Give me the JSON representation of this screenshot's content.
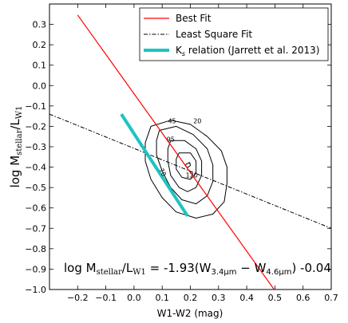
{
  "chart_data": {
    "type": "line",
    "xlabel": "W1-W2 (mag)",
    "ylabel_main": "log M",
    "ylabel_sub1": "stellar",
    "ylabel_mid": "/L",
    "ylabel_sub2": "W1",
    "xlim": [
      -0.3,
      0.7
    ],
    "ylim": [
      -1.0,
      0.4
    ],
    "xticks": [
      -0.2,
      -0.1,
      0.0,
      0.1,
      0.2,
      0.3,
      0.4,
      0.5,
      0.6,
      0.7
    ],
    "xtick_labels": [
      "−0.2",
      "−0.1",
      "0.0",
      "0.1",
      "0.2",
      "0.3",
      "0.4",
      "0.5",
      "0.6",
      "0.7"
    ],
    "yticks": [
      -1.0,
      -0.9,
      -0.8,
      -0.7,
      -0.6,
      -0.5,
      -0.4,
      -0.3,
      -0.2,
      -0.1,
      0.0,
      0.1,
      0.2,
      0.3
    ],
    "ytick_labels": [
      "−1.0",
      "−0.9",
      "−0.8",
      "−0.7",
      "−0.6",
      "−0.5",
      "−0.4",
      "−0.3",
      "−0.2",
      "−0.1",
      "0.0",
      "0.1",
      "0.2",
      "0.3"
    ],
    "series": [
      {
        "name": "Best Fit",
        "color": "#ff0000",
        "style": "solid",
        "x": [
          -0.2,
          0.5
        ],
        "y": [
          0.346,
          -1.005
        ]
      },
      {
        "name": "Least Square Fit",
        "color": "#000000",
        "style": "dashdot",
        "x": [
          -0.3,
          0.7
        ],
        "y": [
          -0.14,
          -0.7
        ]
      },
      {
        "name": "K",
        "name_sub": "s",
        "name_rest": " relation (Jarrett et al. 2013)",
        "color": "#1ec3c3",
        "style": "thick",
        "x": [
          -0.045,
          0.19
        ],
        "y": [
          -0.14,
          -0.64
        ]
      }
    ],
    "contours": [
      {
        "label": "20",
        "label_pos": [
          0.225,
          -0.185
        ],
        "points": [
          [
            0.06,
            -0.2
          ],
          [
            0.13,
            -0.17
          ],
          [
            0.2,
            -0.19
          ],
          [
            0.26,
            -0.25
          ],
          [
            0.31,
            -0.32
          ],
          [
            0.33,
            -0.4
          ],
          [
            0.33,
            -0.48
          ],
          [
            0.32,
            -0.57
          ],
          [
            0.28,
            -0.63
          ],
          [
            0.22,
            -0.65
          ],
          [
            0.15,
            -0.62
          ],
          [
            0.1,
            -0.55
          ],
          [
            0.06,
            -0.46
          ],
          [
            0.04,
            -0.37
          ],
          [
            0.04,
            -0.28
          ]
        ]
      },
      {
        "label": "45",
        "label_pos": [
          0.135,
          -0.185
        ],
        "points": [
          [
            0.09,
            -0.22
          ],
          [
            0.15,
            -0.2
          ],
          [
            0.21,
            -0.24
          ],
          [
            0.26,
            -0.31
          ],
          [
            0.28,
            -0.39
          ],
          [
            0.28,
            -0.47
          ],
          [
            0.26,
            -0.54
          ],
          [
            0.22,
            -0.58
          ],
          [
            0.17,
            -0.56
          ],
          [
            0.13,
            -0.5
          ],
          [
            0.1,
            -0.42
          ],
          [
            0.08,
            -0.34
          ],
          [
            0.08,
            -0.27
          ]
        ]
      },
      {
        "label": "95",
        "label_pos": [
          0.13,
          -0.275
        ],
        "points": [
          [
            0.13,
            -0.27
          ],
          [
            0.18,
            -0.27
          ],
          [
            0.22,
            -0.31
          ],
          [
            0.24,
            -0.37
          ],
          [
            0.24,
            -0.44
          ],
          [
            0.22,
            -0.5
          ],
          [
            0.19,
            -0.52
          ],
          [
            0.16,
            -0.5
          ],
          [
            0.13,
            -0.44
          ],
          [
            0.12,
            -0.37
          ],
          [
            0.12,
            -0.31
          ]
        ]
      },
      {
        "label": "120",
        "label_pos": [
          0.205,
          -0.45
        ],
        "points": [
          [
            0.16,
            -0.33
          ],
          [
            0.2,
            -0.33
          ],
          [
            0.22,
            -0.37
          ],
          [
            0.22,
            -0.43
          ],
          [
            0.2,
            -0.46
          ],
          [
            0.17,
            -0.45
          ],
          [
            0.15,
            -0.41
          ],
          [
            0.15,
            -0.36
          ]
        ]
      },
      {
        "label": "",
        "label_pos": [
          0,
          0
        ],
        "points": [
          [
            0.185,
            -0.385
          ],
          [
            0.198,
            -0.378
          ],
          [
            0.2,
            -0.392
          ],
          [
            0.19,
            -0.402
          ],
          [
            0.183,
            -0.395
          ]
        ]
      }
    ],
    "rotated_label": {
      "text": "70",
      "pos": [
        0.095,
        -0.43
      ]
    },
    "legend": {
      "placement": "top-right",
      "items": [
        {
          "label": "Best Fit"
        },
        {
          "label": "Least Square Fit"
        },
        {
          "label": "K",
          "label_sub": "s",
          "label_rest": " relation (Jarrett et al. 2013)"
        }
      ]
    },
    "annotation": {
      "prefix": "log M",
      "sub1": "stellar",
      "mid": "/L",
      "sub2": "W1",
      "eq1": " = -1.93(W",
      "sub3": "3.4μm",
      "mid2": " − W",
      "sub4": "4.6μm",
      "suffix": ") -0.04"
    }
  }
}
